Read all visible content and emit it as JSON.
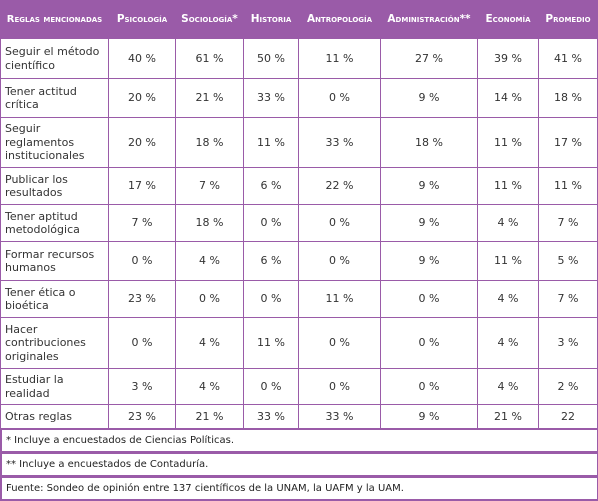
{
  "table": {
    "header": [
      "Reglas mencionadas",
      "Psicología",
      "Sociología*",
      "Historia",
      "Antropología",
      "Administración**",
      "Economía",
      "Promedio"
    ],
    "rows": [
      [
        "Seguir el método científico",
        "40 %",
        "61 %",
        "50 %",
        "11 %",
        "27 %",
        "39 %",
        "41 %"
      ],
      [
        "Tener actitud crítica",
        "20 %",
        "21 %",
        "33 %",
        "0 %",
        "9 %",
        "14 %",
        "18 %"
      ],
      [
        "Seguir reglamentos institucionales",
        "20 %",
        "18 %",
        "11 %",
        "33 %",
        "18 %",
        "11 %",
        "17 %"
      ],
      [
        "Publicar los resultados",
        "17 %",
        "7 %",
        "6 %",
        "22 %",
        "9 %",
        "11 %",
        "11 %"
      ],
      [
        "Tener aptitud metodológica",
        "7 %",
        "18 %",
        "0 %",
        "0 %",
        "9 %",
        "4 %",
        "7 %"
      ],
      [
        "Formar recursos humanos",
        "0 %",
        "4 %",
        "6 %",
        "0 %",
        "9 %",
        "11 %",
        "5 %"
      ],
      [
        "Tener ética o bioética",
        "23 %",
        "0 %",
        "0 %",
        "11 %",
        "0 %",
        "4 %",
        "7 %"
      ],
      [
        "Hacer contribuciones originales",
        "0 %",
        "4 %",
        "11 %",
        "0 %",
        "0 %",
        "4 %",
        "3 %"
      ],
      [
        "Estudiar la realidad",
        "3 %",
        "4 %",
        "0 %",
        "0 %",
        "0 %",
        "4 %",
        "2 %"
      ],
      [
        "Otras reglas",
        "23 %",
        "21 %",
        "33 %",
        "33 %",
        "9 %",
        "21 %",
        "22"
      ]
    ]
  },
  "notes": [
    "* Incluye a encuestados de Ciencias Políticas.",
    "** Incluye a encuestados de Contaduría.",
    "Fuente: Sondeo de opinión entre 137 científicos de la UNAM, la UAFM y la UAM."
  ]
}
